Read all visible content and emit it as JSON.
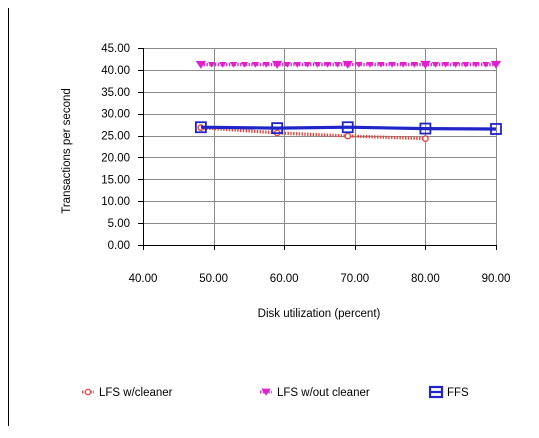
{
  "chart_data": {
    "type": "line",
    "xlabel": "Disk utilization (percent)",
    "ylabel": "Transactions per second",
    "xlim": [
      40,
      90
    ],
    "ylim": [
      0,
      45
    ],
    "x_ticks": [
      40,
      50,
      60,
      70,
      80,
      90
    ],
    "y_ticks": [
      0,
      5,
      10,
      15,
      20,
      25,
      30,
      35,
      40,
      45
    ],
    "x_tick_labels": [
      "40.00",
      "50.00",
      "60.00",
      "70.00",
      "80.00",
      "90.00"
    ],
    "y_tick_labels": [
      "0.00",
      "5.00",
      "10.00",
      "15.00",
      "20.00",
      "25.00",
      "30.00",
      "35.00",
      "40.00",
      "45.00"
    ],
    "grid": true,
    "legend_position": "bottom",
    "series": [
      {
        "name": "LFS w/cleaner",
        "color": "#e8403a",
        "marker": "circle",
        "line_style": "dotted-thick",
        "x": [
          48.2,
          59.0,
          69.0,
          80.0
        ],
        "y": [
          26.8,
          25.6,
          24.9,
          24.3
        ]
      },
      {
        "name": "LFS w/out cleaner",
        "color": "#e020d0",
        "marker": "bowtie",
        "line_style": "dotted-thick",
        "x": [
          48.2,
          59.0,
          69.0,
          80.0,
          90.0
        ],
        "y": [
          41.2,
          41.2,
          41.2,
          41.2,
          41.2
        ]
      },
      {
        "name": "FFS",
        "color": "#1f25c8",
        "marker": "square",
        "line_style": "solid-thick",
        "x": [
          48.2,
          59.0,
          69.0,
          80.0,
          90.0
        ],
        "y": [
          26.9,
          26.7,
          26.9,
          26.6,
          26.5
        ]
      }
    ]
  }
}
